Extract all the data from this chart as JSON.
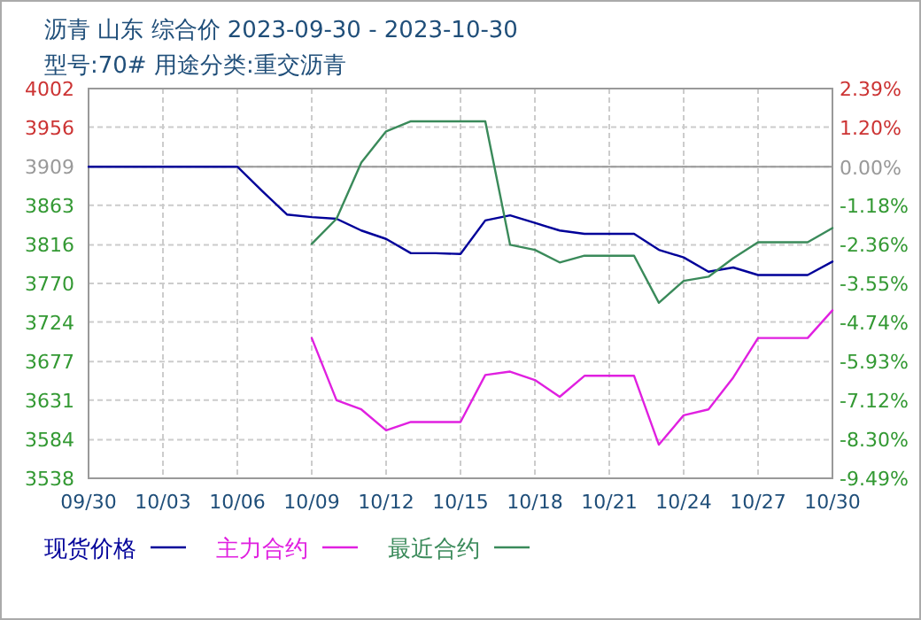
{
  "chart_data": {
    "type": "line",
    "title": "沥青  山东  综合价  2023-09-30  -  2023-10-30",
    "subtitle": "型号:70#  用途分类:重交沥青",
    "x": [
      "2023-09-30",
      "2023-10-01",
      "2023-10-02",
      "2023-10-03",
      "2023-10-04",
      "2023-10-05",
      "2023-10-06",
      "2023-10-07",
      "2023-10-08",
      "2023-10-09",
      "2023-10-10",
      "2023-10-11",
      "2023-10-12",
      "2023-10-13",
      "2023-10-14",
      "2023-10-15",
      "2023-10-16",
      "2023-10-17",
      "2023-10-18",
      "2023-10-19",
      "2023-10-20",
      "2023-10-21",
      "2023-10-22",
      "2023-10-23",
      "2023-10-24",
      "2023-10-25",
      "2023-10-26",
      "2023-10-27",
      "2023-10-28",
      "2023-10-29",
      "2023-10-30"
    ],
    "series": [
      {
        "name": "现货价格",
        "color": "#000099",
        "values": [
          3909,
          3909,
          3909,
          3909,
          3909,
          3909,
          3909,
          3880,
          3852,
          3849,
          3847,
          3833,
          3823,
          3806,
          3806,
          3805,
          3845,
          3851,
          3842,
          3833,
          3829,
          3829,
          3829,
          3810,
          3801,
          3784,
          3789,
          3780,
          3780,
          3780,
          3796
        ]
      },
      {
        "name": "主力合约",
        "color": "#e020e0",
        "values": [
          null,
          null,
          null,
          null,
          null,
          null,
          null,
          null,
          null,
          3705,
          3631,
          3620,
          3595,
          3605,
          3605,
          3605,
          3661,
          3665,
          3655,
          3635,
          3660,
          3660,
          3660,
          3578,
          3613,
          3620,
          3658,
          3705,
          3705,
          3705,
          3738
        ]
      },
      {
        "name": "最近合约",
        "color": "#3a8a5a",
        "values": [
          null,
          null,
          null,
          null,
          null,
          null,
          null,
          null,
          null,
          3817,
          3847,
          3914,
          3951,
          3963,
          3963,
          3963,
          3963,
          3816,
          3810,
          3795,
          3803,
          3803,
          3803,
          3747,
          3773,
          3778,
          3800,
          3819,
          3819,
          3819,
          3836
        ]
      }
    ],
    "xlim": [
      "2023-09-30",
      "2023-10-30"
    ],
    "xticks": [
      {
        "value": "2023-09-30",
        "label": "09/30"
      },
      {
        "value": "2023-10-03",
        "label": "10/03"
      },
      {
        "value": "2023-10-06",
        "label": "10/06"
      },
      {
        "value": "2023-10-09",
        "label": "10/09"
      },
      {
        "value": "2023-10-12",
        "label": "10/12"
      },
      {
        "value": "2023-10-15",
        "label": "10/15"
      },
      {
        "value": "2023-10-18",
        "label": "10/18"
      },
      {
        "value": "2023-10-21",
        "label": "10/21"
      },
      {
        "value": "2023-10-24",
        "label": "10/24"
      },
      {
        "value": "2023-10-27",
        "label": "10/27"
      },
      {
        "value": "2023-10-30",
        "label": "10/30"
      }
    ],
    "ylim": [
      3538,
      4002
    ],
    "yticks": [
      3538,
      3584,
      3631,
      3677,
      3724,
      3770,
      3816,
      3863,
      3909,
      3956,
      4002
    ],
    "y2lim": [
      -9.49,
      2.39
    ],
    "y2ticks": [
      {
        "value": -9.49,
        "label": "-9.49%"
      },
      {
        "value": -8.3,
        "label": "-8.30%"
      },
      {
        "value": -7.12,
        "label": "-7.12%"
      },
      {
        "value": -5.93,
        "label": "-5.93%"
      },
      {
        "value": -4.74,
        "label": "-4.74%"
      },
      {
        "value": -3.55,
        "label": "-3.55%"
      },
      {
        "value": -2.36,
        "label": "-2.36%"
      },
      {
        "value": -1.18,
        "label": "-1.18%"
      },
      {
        "value": 0,
        "label": "0.00%"
      },
      {
        "value": 1.2,
        "label": "1.20%"
      },
      {
        "value": 2.39,
        "label": "2.39%"
      }
    ],
    "ref_lines": [
      {
        "axis": "y",
        "value": 3909,
        "color": "#999999"
      }
    ],
    "grid": true,
    "legend": "bottom",
    "marker": "none",
    "line_style": "solid"
  }
}
